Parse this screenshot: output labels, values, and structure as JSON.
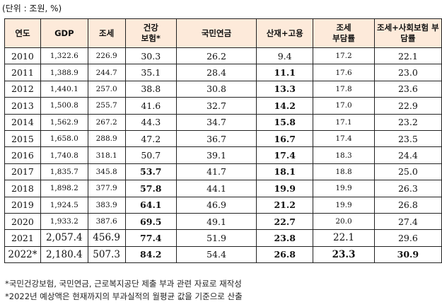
{
  "unit_label": "(단위 : 조원, %)",
  "table": {
    "headers": [
      "연도",
      "GDP",
      "조세",
      "건강\n보험*",
      "국민연금",
      "산재+고용",
      "조세\n부담률",
      "조세+사회보험 부\n담률"
    ],
    "rows": [
      [
        "2010",
        "1,322.6",
        "226.9",
        "30.3",
        "26.2",
        "9.4",
        "17.2",
        "22.1"
      ],
      [
        "2011",
        "1,388.9",
        "244.7",
        "35.1",
        "28.4",
        "11.1",
        "17.6",
        "23.0"
      ],
      [
        "2012",
        "1,440.1",
        "257.0",
        "38.8",
        "30.8",
        "13.3",
        "17.8",
        "23.6"
      ],
      [
        "2013",
        "1,500.8",
        "255.7",
        "41.6",
        "32.7",
        "14.2",
        "17.0",
        "22.9"
      ],
      [
        "2014",
        "1,562.9",
        "267.2",
        "44.3",
        "34.7",
        "15.8",
        "17.1",
        "23.2"
      ],
      [
        "2015",
        "1,658.0",
        "288.9",
        "47.2",
        "36.7",
        "16.7",
        "17.4",
        "23.5"
      ],
      [
        "2016",
        "1,740.8",
        "318.1",
        "50.7",
        "39.1",
        "17.4",
        "18.3",
        "24.4"
      ],
      [
        "2017",
        "1,835.7",
        "345.8",
        "53.7",
        "41.7",
        "18.1",
        "18.8",
        "25.0"
      ],
      [
        "2018",
        "1,898.2",
        "377.9",
        "57.8",
        "44.1",
        "19.9",
        "19.9",
        "26.3"
      ],
      [
        "2019",
        "1,924.5",
        "383.9",
        "64.1",
        "46.9",
        "21.2",
        "19.9",
        "26.8"
      ],
      [
        "2020",
        "1,933.2",
        "387.6",
        "69.5",
        "49.1",
        "22.7",
        "20.0",
        "27.4"
      ],
      [
        "2021",
        "2,057.4",
        "456.9",
        "77.4",
        "51.9",
        "23.8",
        "22.1",
        "29.6"
      ],
      [
        "2022*",
        "2,180.4",
        "507.3",
        "84.2",
        "54.4",
        "26.8",
        "23.3",
        "30.9"
      ]
    ]
  },
  "notes": [
    "*국민건강보험, 국민연금, 근로복지공단 제출 부과 관련 자료로 재작성",
    "*2022년 예상액은 현재까지의 부과실적의 월평균 값을 기준으로 산출"
  ],
  "colors": {
    "header_bg": "#fdeada",
    "border": "#222222"
  }
}
